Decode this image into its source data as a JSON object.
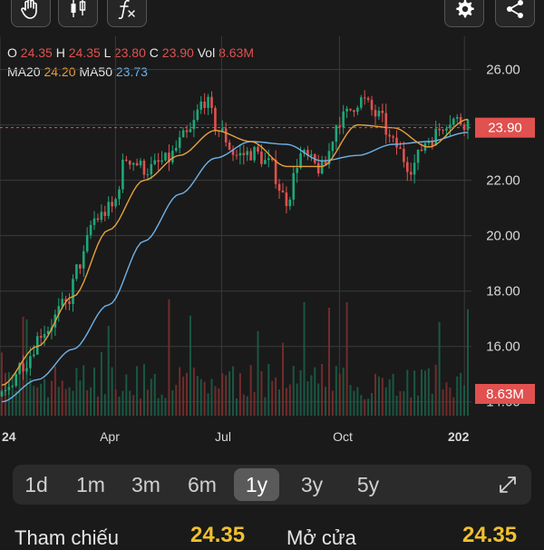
{
  "ohlc": {
    "o_label": "O",
    "o": "24.35",
    "h_label": "H",
    "h": "24.35",
    "l_label": "L",
    "l": "23.80",
    "c_label": "C",
    "c": "23.90",
    "vol_label": "Vol",
    "vol": "8.63M"
  },
  "ma": {
    "ma20_label": "MA20",
    "ma20": "24.20",
    "ma50_label": "MA50",
    "ma50": "23.73"
  },
  "chart_data": {
    "type": "candlestick",
    "y_ticks": [
      "26.00",
      "24.00",
      "22.00",
      "20.00",
      "18.00",
      "16.00",
      "14.00"
    ],
    "ylim": [
      13.5,
      27.2
    ],
    "x_ticks": [
      "24",
      "Apr",
      "Jul",
      "Oct",
      "202"
    ],
    "last_price": "23.90",
    "volume_label": "8.63M",
    "price_anchors": [
      [
        0,
        14.2
      ],
      [
        6,
        15.4
      ],
      [
        12,
        16.6
      ],
      [
        18,
        17.5
      ],
      [
        22,
        19.0
      ],
      [
        26,
        20.6
      ],
      [
        31,
        21.0
      ],
      [
        35,
        22.8
      ],
      [
        41,
        22.4
      ],
      [
        46,
        22.7
      ],
      [
        52,
        23.6
      ],
      [
        57,
        24.9
      ],
      [
        61,
        23.8
      ],
      [
        66,
        22.9
      ],
      [
        71,
        23.0
      ],
      [
        75,
        22.6
      ],
      [
        80,
        21.3
      ],
      [
        84,
        22.9
      ],
      [
        90,
        22.4
      ],
      [
        95,
        24.2
      ],
      [
        101,
        24.9
      ],
      [
        106,
        24.3
      ],
      [
        110,
        23.3
      ],
      [
        115,
        22.5
      ],
      [
        120,
        23.5
      ],
      [
        126,
        24.2
      ],
      [
        131,
        24.1
      ]
    ],
    "ma20_anchors": [
      [
        0,
        14.6
      ],
      [
        10,
        16.0
      ],
      [
        20,
        17.8
      ],
      [
        30,
        20.2
      ],
      [
        40,
        22.0
      ],
      [
        50,
        22.9
      ],
      [
        60,
        23.8
      ],
      [
        70,
        23.4
      ],
      [
        80,
        22.5
      ],
      [
        90,
        22.5
      ],
      [
        100,
        24.0
      ],
      [
        110,
        23.9
      ],
      [
        120,
        23.2
      ],
      [
        131,
        24.2
      ]
    ],
    "ma50_anchors": [
      [
        0,
        14.0
      ],
      [
        10,
        14.8
      ],
      [
        20,
        15.9
      ],
      [
        30,
        17.5
      ],
      [
        40,
        19.8
      ],
      [
        50,
        21.5
      ],
      [
        60,
        22.8
      ],
      [
        70,
        23.4
      ],
      [
        80,
        23.3
      ],
      [
        90,
        22.7
      ],
      [
        100,
        22.9
      ],
      [
        110,
        23.3
      ],
      [
        120,
        23.4
      ],
      [
        131,
        23.73
      ]
    ],
    "colors": {
      "up": "#1fa77a",
      "down": "#e0514f",
      "ma20": "#e8a03a",
      "ma50": "#6fb2e8",
      "grid": "#3a3a3a",
      "price_line": "#e0514f"
    }
  },
  "periods": [
    "1d",
    "1m",
    "3m",
    "6m",
    "1y",
    "3y",
    "5y"
  ],
  "active_period": "1y",
  "stats": {
    "ref_label": "Tham chiếu",
    "ref_value": "24.35",
    "open_label": "Mở cửa",
    "open_value": "24.35"
  },
  "toolbar": {
    "icons": [
      "hand-icon",
      "candlestick-icon",
      "function-icon",
      "settings-icon",
      "share-icon"
    ]
  }
}
